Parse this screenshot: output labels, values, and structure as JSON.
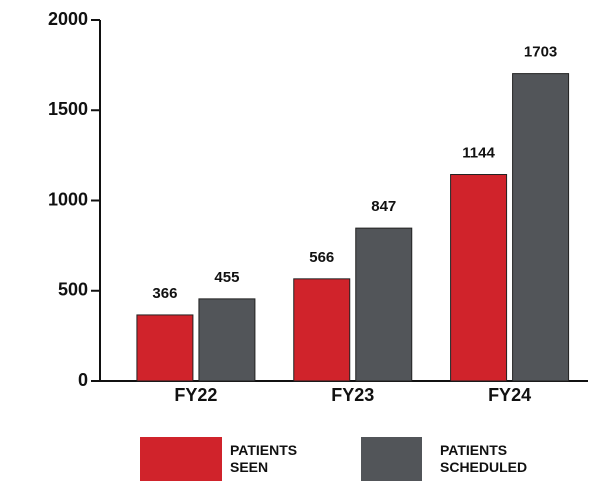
{
  "chart_data": {
    "type": "bar",
    "categories": [
      "FY22",
      "FY23",
      "FY24"
    ],
    "series": [
      {
        "name": "PATIENTS SEEN",
        "color": "#d0232b",
        "values": [
          366,
          566,
          1144
        ]
      },
      {
        "name": "PATIENTS SCHEDULED",
        "color": "#525559",
        "values": [
          455,
          847,
          1703
        ]
      }
    ],
    "ylim": [
      0,
      2000
    ],
    "yticks": [
      0,
      500,
      1000,
      1500,
      2000
    ],
    "grid": false
  }
}
